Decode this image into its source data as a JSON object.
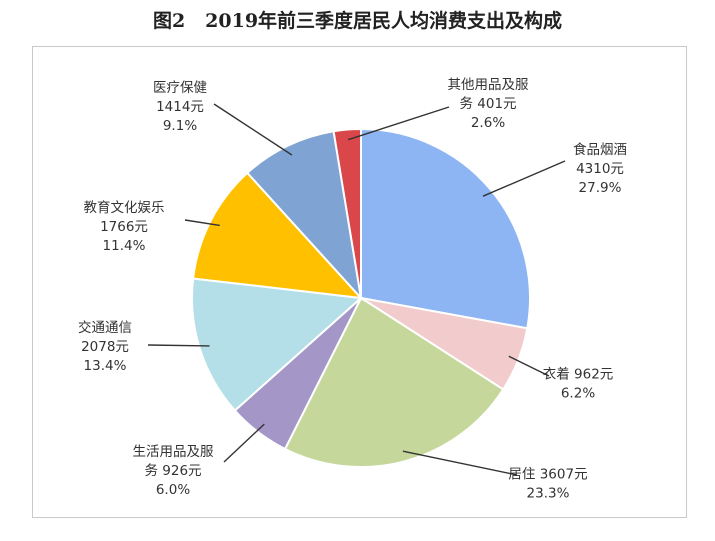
{
  "title": {
    "figure_no": "图2",
    "text": "2019年前三季度居民人均消费支出及构成"
  },
  "chart_data": {
    "type": "pie",
    "title": "图2 2019年前三季度居民人均消费支出及构成",
    "slices": [
      {
        "name": "食品烟酒",
        "value": 4310,
        "value_text": "4310元",
        "pct_text": "27.9%",
        "color": "#8DB4F3"
      },
      {
        "name": "衣着",
        "value": 962,
        "value_text": "962元",
        "pct_text": "6.2%",
        "color": "#F2CCCC"
      },
      {
        "name": "居住",
        "value": 3607,
        "value_text": "3607元",
        "pct_text": "23.3%",
        "color": "#C5D79A"
      },
      {
        "name": "生活用品及服务",
        "value": 926,
        "value_text": "926元",
        "pct_text": "6.0%",
        "color": "#A497C7"
      },
      {
        "name": "交通通信",
        "value": 2078,
        "value_text": "2078元",
        "pct_text": "13.4%",
        "color": "#B5DFE8"
      },
      {
        "name": "教育文化娱乐",
        "value": 1766,
        "value_text": "1766元",
        "pct_text": "11.4%",
        "color": "#FFC000"
      },
      {
        "name": "医疗保健",
        "value": 1414,
        "value_text": "1414元",
        "pct_text": "9.1%",
        "color": "#7FA4D3"
      },
      {
        "name": "其他用品及服务",
        "value": 401,
        "value_text": "401元",
        "pct_text": "2.6%",
        "color": "#D9474A"
      }
    ]
  }
}
